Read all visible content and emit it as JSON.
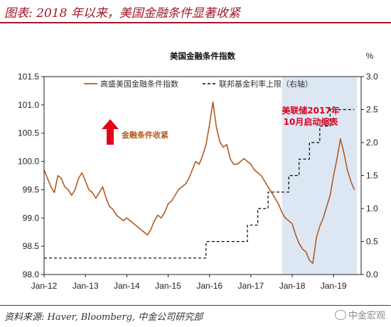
{
  "header": {
    "title": "图表: 2018 年以来，美国金融条件显著收紧"
  },
  "footer": {
    "source": "资料来源: Haver, Bloomberg, 中金公司研究部",
    "watermark": "中金宏观"
  },
  "colors": {
    "brand": "#a0172b",
    "series_main": "#b35a1f",
    "series_fed": "#000000",
    "shade": "#dde7f4",
    "arrow": "#e3001b"
  },
  "chart_data": {
    "type": "line",
    "title": "美国金融条件指数",
    "y_right_unit": "%",
    "legend": {
      "placement": "top",
      "entries": [
        "高盛美国金融条件指数",
        "联邦基金利率上限（右轴）"
      ]
    },
    "x_ticks": [
      "Jan-12",
      "Jan-13",
      "Jan-14",
      "Jan-15",
      "Jan-16",
      "Jan-17",
      "Jan-18",
      "Jan-19"
    ],
    "ylim_left": [
      98.0,
      101.5
    ],
    "yticks_left": [
      "98.0",
      "98.5",
      "99.0",
      "99.5",
      "100.0",
      "100.5",
      "101.0",
      "101.5"
    ],
    "ylim_right": [
      0.0,
      3.0
    ],
    "yticks_right": [
      "0.0",
      "0.5",
      "1.0",
      "1.5",
      "2.0",
      "2.5",
      "3.0"
    ],
    "grid": false,
    "series": [
      {
        "name": "高盛美国金融条件指数",
        "axis": "left",
        "points": [
          [
            "2012-01",
            99.85
          ],
          [
            "2012-02",
            99.7
          ],
          [
            "2012-03",
            99.55
          ],
          [
            "2012-04",
            99.45
          ],
          [
            "2012-05",
            99.75
          ],
          [
            "2012-06",
            99.7
          ],
          [
            "2012-07",
            99.55
          ],
          [
            "2012-08",
            99.5
          ],
          [
            "2012-09",
            99.4
          ],
          [
            "2012-10",
            99.5
          ],
          [
            "2012-11",
            99.7
          ],
          [
            "2012-12",
            99.8
          ],
          [
            "2013-01",
            99.65
          ],
          [
            "2013-02",
            99.5
          ],
          [
            "2013-03",
            99.45
          ],
          [
            "2013-04",
            99.35
          ],
          [
            "2013-05",
            99.45
          ],
          [
            "2013-06",
            99.55
          ],
          [
            "2013-07",
            99.35
          ],
          [
            "2013-08",
            99.2
          ],
          [
            "2013-09",
            99.15
          ],
          [
            "2013-10",
            99.05
          ],
          [
            "2013-11",
            99.0
          ],
          [
            "2013-12",
            98.95
          ],
          [
            "2014-01",
            99.0
          ],
          [
            "2014-02",
            98.95
          ],
          [
            "2014-03",
            98.9
          ],
          [
            "2014-04",
            98.85
          ],
          [
            "2014-05",
            98.8
          ],
          [
            "2014-06",
            98.75
          ],
          [
            "2014-07",
            98.7
          ],
          [
            "2014-08",
            98.8
          ],
          [
            "2014-09",
            98.95
          ],
          [
            "2014-10",
            99.05
          ],
          [
            "2014-11",
            99.0
          ],
          [
            "2014-12",
            99.1
          ],
          [
            "2015-01",
            99.25
          ],
          [
            "2015-02",
            99.3
          ],
          [
            "2015-03",
            99.4
          ],
          [
            "2015-04",
            99.5
          ],
          [
            "2015-05",
            99.55
          ],
          [
            "2015-06",
            99.6
          ],
          [
            "2015-07",
            99.7
          ],
          [
            "2015-08",
            99.85
          ],
          [
            "2015-09",
            100.0
          ],
          [
            "2015-10",
            99.95
          ],
          [
            "2015-11",
            100.1
          ],
          [
            "2015-12",
            100.3
          ],
          [
            "2016-01",
            100.65
          ],
          [
            "2016-02",
            101.05
          ],
          [
            "2016-03",
            100.6
          ],
          [
            "2016-04",
            100.35
          ],
          [
            "2016-05",
            100.25
          ],
          [
            "2016-06",
            100.3
          ],
          [
            "2016-07",
            100.05
          ],
          [
            "2016-08",
            99.95
          ],
          [
            "2016-09",
            99.95
          ],
          [
            "2016-10",
            100.0
          ],
          [
            "2016-11",
            100.05
          ],
          [
            "2016-12",
            100.0
          ],
          [
            "2017-01",
            99.95
          ],
          [
            "2017-02",
            99.85
          ],
          [
            "2017-03",
            99.8
          ],
          [
            "2017-04",
            99.75
          ],
          [
            "2017-05",
            99.65
          ],
          [
            "2017-06",
            99.55
          ],
          [
            "2017-07",
            99.45
          ],
          [
            "2017-08",
            99.35
          ],
          [
            "2017-09",
            99.25
          ],
          [
            "2017-10",
            99.1
          ],
          [
            "2017-11",
            99.0
          ],
          [
            "2017-12",
            98.95
          ],
          [
            "2018-01",
            98.9
          ],
          [
            "2018-02",
            98.7
          ],
          [
            "2018-03",
            98.55
          ],
          [
            "2018-04",
            98.45
          ],
          [
            "2018-05",
            98.4
          ],
          [
            "2018-06",
            98.25
          ],
          [
            "2018-07",
            98.2
          ],
          [
            "2018-08",
            98.65
          ],
          [
            "2018-09",
            98.85
          ],
          [
            "2018-10",
            99.0
          ],
          [
            "2018-11",
            99.2
          ],
          [
            "2018-12",
            99.4
          ],
          [
            "2019-01",
            99.75
          ],
          [
            "2019-02",
            100.05
          ],
          [
            "2019-03",
            100.4
          ],
          [
            "2019-04",
            100.15
          ],
          [
            "2019-05",
            99.85
          ],
          [
            "2019-06",
            99.65
          ],
          [
            "2019-07",
            99.5
          ]
        ]
      },
      {
        "name": "联邦基金利率上限（右轴）",
        "axis": "right",
        "style": "dashed-step",
        "points": [
          [
            "2012-01",
            0.25
          ],
          [
            "2015-12",
            0.5
          ],
          [
            "2016-12",
            0.75
          ],
          [
            "2017-03",
            1.0
          ],
          [
            "2017-06",
            1.25
          ],
          [
            "2017-12",
            1.5
          ],
          [
            "2018-03",
            1.75
          ],
          [
            "2018-06",
            2.0
          ],
          [
            "2018-09",
            2.25
          ],
          [
            "2018-12",
            2.5
          ],
          [
            "2019-07",
            2.5
          ]
        ]
      }
    ],
    "shaded_region": {
      "from": "2017-10",
      "to": "2019-07"
    },
    "annotations": [
      {
        "text": "金融条件收紧",
        "marker": "up-arrow"
      },
      {
        "text": "美联储2017年",
        "line2": "10月启动缩表"
      }
    ]
  }
}
